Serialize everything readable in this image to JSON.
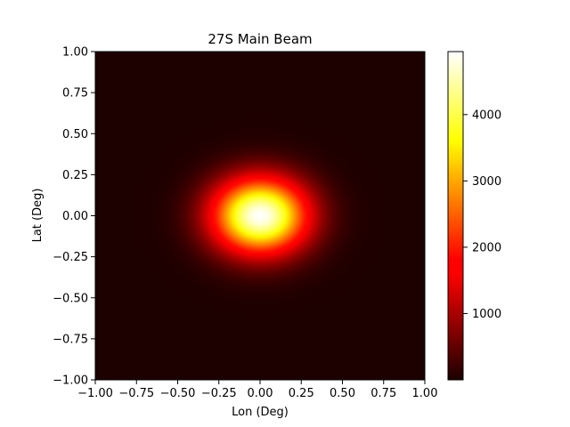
{
  "chart_data": {
    "type": "heatmap",
    "title": "27S Main Beam",
    "xlabel": "Lon (Deg)",
    "ylabel": "Lat (Deg)",
    "xlim": [
      -1.0,
      1.0
    ],
    "ylim": [
      -1.0,
      1.0
    ],
    "x_ticks": [
      "−1.00",
      "−0.75",
      "−0.50",
      "−0.25",
      "0.00",
      "0.25",
      "0.50",
      "0.75",
      "1.00"
    ],
    "y_ticks": [
      "−1.00",
      "−0.75",
      "−0.50",
      "−0.25",
      "0.00",
      "0.25",
      "0.50",
      "0.75",
      "1.00"
    ],
    "colormap": "hot",
    "colorbar": {
      "ticks": [
        "1000",
        "2000",
        "3000",
        "4000"
      ],
      "min": 0,
      "max": 4950
    },
    "beam": {
      "peak_value": 4950,
      "center_lon": 0.0,
      "center_lat": 0.0,
      "sigma_lon": 0.2,
      "sigma_lat": 0.16
    },
    "grid": false
  }
}
